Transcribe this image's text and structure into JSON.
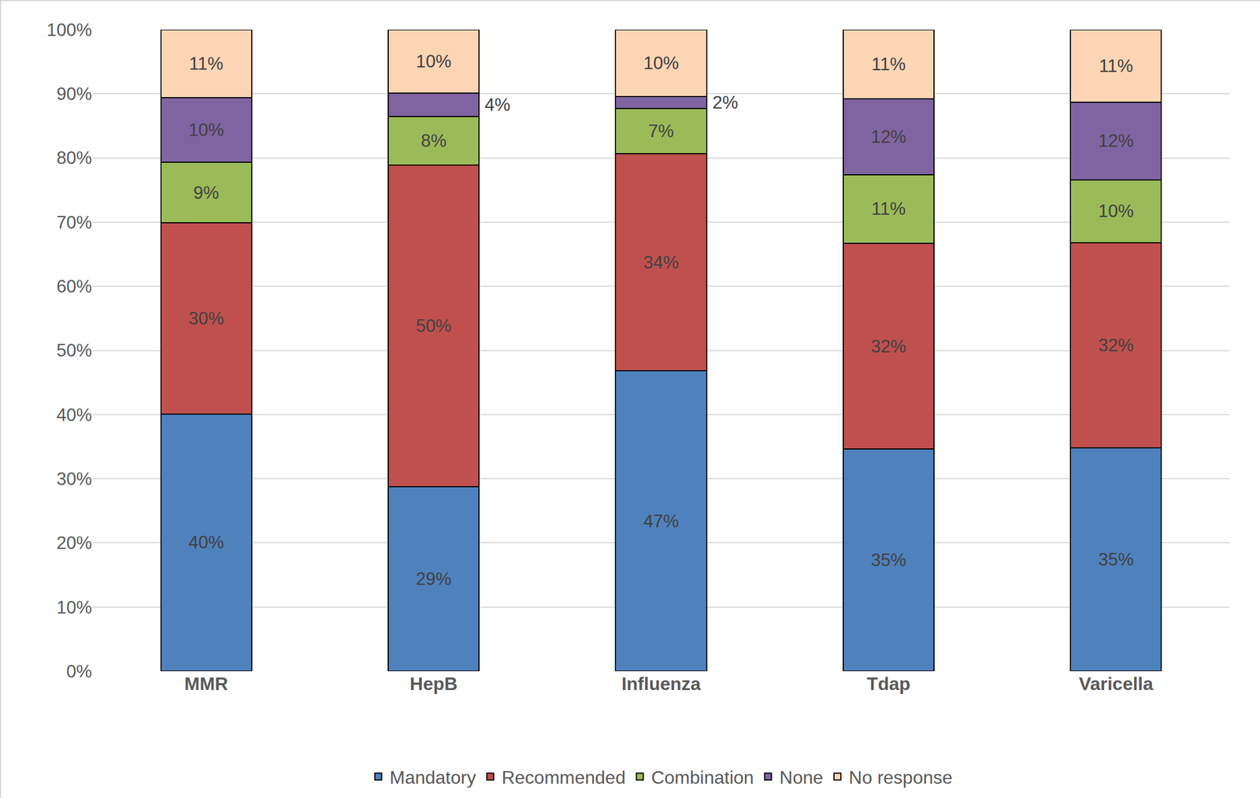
{
  "chart_data": {
    "type": "bar",
    "stacked": true,
    "data_labels": true,
    "grid": true,
    "legend": "bottom",
    "categories": [
      "MMR",
      "HepB",
      "Influenza",
      "Tdap",
      "Varicella"
    ],
    "series": [
      {
        "name": "Mandatory",
        "color": "#4f81bd",
        "values": [
          40.1,
          28.8,
          46.8,
          34.6,
          34.8
        ],
        "value_labels": [
          "40%",
          "29%",
          "47%",
          "35%",
          "35%"
        ]
      },
      {
        "name": "Recommended",
        "color": "#c0504d",
        "values": [
          29.8,
          50.1,
          33.9,
          32.1,
          32.0
        ],
        "value_labels": [
          "30%",
          "50%",
          "34%",
          "32%",
          "32%"
        ]
      },
      {
        "name": "Combination",
        "color": "#9bbb59",
        "values": [
          9.4,
          7.6,
          7.0,
          10.7,
          9.8
        ],
        "value_labels": [
          "9%",
          "8%",
          "7%",
          "11%",
          "10%"
        ]
      },
      {
        "name": "None",
        "color": "#8064a2",
        "values": [
          10.1,
          3.6,
          1.9,
          11.8,
          12.1
        ],
        "value_labels": [
          "10%",
          "4%",
          "2%",
          "12%",
          "12%"
        ]
      },
      {
        "name": "No response",
        "color": "#fcd5b5",
        "values": [
          10.6,
          9.9,
          10.4,
          10.8,
          11.3
        ],
        "value_labels": [
          "11%",
          "10%",
          "10%",
          "11%",
          "11%"
        ]
      }
    ],
    "ylim": [
      0,
      100
    ],
    "yticks": [
      {
        "value": 0,
        "label": "0%"
      },
      {
        "value": 10,
        "label": "10%"
      },
      {
        "value": 20,
        "label": "20%"
      },
      {
        "value": 30,
        "label": "30%"
      },
      {
        "value": 40,
        "label": "40%"
      },
      {
        "value": 50,
        "label": "50%"
      },
      {
        "value": 60,
        "label": "60%"
      },
      {
        "value": 70,
        "label": "70%"
      },
      {
        "value": 80,
        "label": "80%"
      },
      {
        "value": 90,
        "label": "90%"
      },
      {
        "value": 100,
        "label": "100%"
      }
    ]
  }
}
